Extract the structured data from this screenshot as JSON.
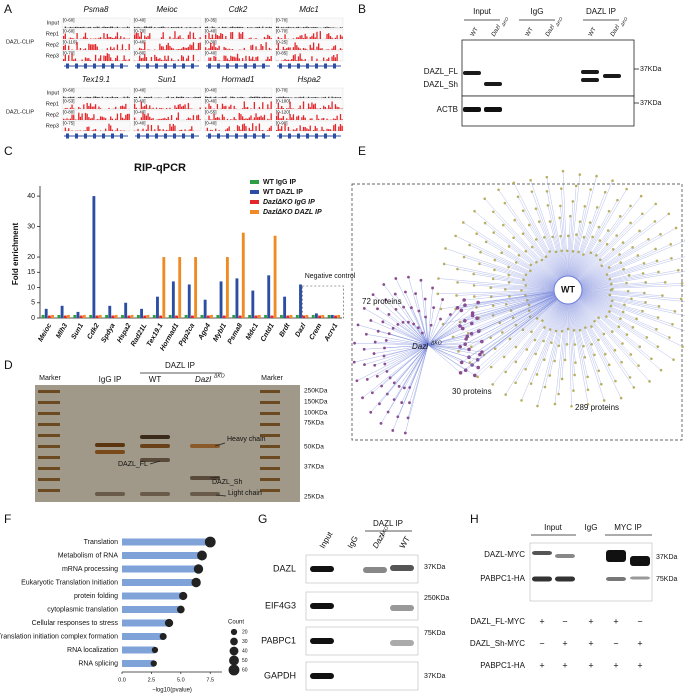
{
  "panel_labels": [
    "A",
    "B",
    "C",
    "D",
    "E",
    "F",
    "G",
    "H"
  ],
  "panel_a": {
    "tracks": [
      "Input",
      "Rep1",
      "Rep2",
      "Rep3"
    ],
    "group": "DAZL-CLIP",
    "genes": [
      {
        "name": "Psma8",
        "ranges": [
          "[0-60]",
          "[0-60]",
          "[0-110]",
          "[0-70]"
        ]
      },
      {
        "name": "Meioc",
        "ranges": [
          "[0-40]",
          "[0-70]",
          "[0-40]",
          "[0-80]"
        ]
      },
      {
        "name": "Cdk2",
        "ranges": [
          "[0-35]",
          "[0-40]",
          "[0-30]",
          "[0-40]"
        ]
      },
      {
        "name": "Mdc1",
        "ranges": [
          "[0-70]",
          "[0-70]",
          "[0-25]",
          "[0-85]"
        ]
      },
      {
        "name": "Tex19.1",
        "ranges": [
          "[0-60]",
          "[0-53]",
          "[0-80]",
          "[0-75]"
        ]
      },
      {
        "name": "Sun1",
        "ranges": [
          "[0-40]",
          "[0-40]",
          "[0-40]",
          "[0-40]"
        ]
      },
      {
        "name": "Hormad1",
        "ranges": [
          "[0-40]",
          "[0-40]",
          "[0-55]",
          "[0-40]"
        ]
      },
      {
        "name": "Hspa2",
        "ranges": [
          "[0-70]",
          "[0-100]",
          "[0-120]",
          "[0-90]"
        ]
      }
    ]
  },
  "panel_b": {
    "groups": [
      "Input",
      "IgG",
      "DAZL IP"
    ],
    "lanes": [
      "WT",
      "Dazl",
      "WT",
      "Dazl",
      "WT",
      "Dazl"
    ],
    "ko": "ΔKO",
    "bands": [
      "DAZL_FL",
      "DAZL_Sh",
      "ACTB"
    ],
    "sizes": [
      "37KDa",
      "37KDa"
    ]
  },
  "panel_d": {
    "markers": [
      "Marker",
      "Marker"
    ],
    "igg": "IgG IP",
    "ip": "DAZL IP",
    "wt": "WT",
    "ko_name": "Dazl",
    "ko": "ΔKO",
    "sizes": [
      "250KDa",
      "150KDa",
      "100KDa",
      "75KDa",
      "50KDa",
      "37KDa",
      "25KDa"
    ],
    "notes": [
      "Heavy chain",
      "DAZL_FL",
      "DAZL_Sh",
      "Light chain"
    ]
  },
  "panel_e": {
    "hub_wt": "WT",
    "hub_ko": "Dazl",
    "ko": "ΔKO",
    "counts": [
      "72 proteins",
      "30 proteins",
      "289 proteins"
    ]
  },
  "panel_g": {
    "lanes": [
      "Input",
      "IgG",
      "Dazl",
      "WT"
    ],
    "ko": "ΔKO",
    "ip": "DAZL IP",
    "rows": [
      "DAZL",
      "EIF4G3",
      "PABPC1",
      "GAPDH"
    ],
    "sizes": [
      "37KDa",
      "250KDa",
      "75KDa",
      "37KDa"
    ]
  },
  "panel_h": {
    "groups": [
      "Input",
      "IgG",
      "MYC IP"
    ],
    "rows": [
      "DAZL-MYC",
      "PABPC1-HA"
    ],
    "sizes": [
      "37KDa",
      "75KDa"
    ],
    "conditions": [
      {
        "name": "DAZL_FL-MYC",
        "signs": [
          "+",
          "−",
          "+",
          "+",
          "−"
        ]
      },
      {
        "name": "DAZL_Sh-MYC",
        "signs": [
          "−",
          "+",
          "+",
          "−",
          "+"
        ]
      },
      {
        "name": "PABPC1-HA",
        "signs": [
          "+",
          "+",
          "+",
          "+",
          "+"
        ]
      }
    ]
  },
  "chart_data": [
    {
      "type": "bar",
      "title": "RIP-qPCR",
      "ylabel": "Fold enrichment",
      "categories": [
        "Meioc",
        "Mlh3",
        "Sun1",
        "Cdk2",
        "Spdya",
        "Hspa2",
        "Rad21L",
        "Tex19.1",
        "Hormad1",
        "Ppp2ca",
        "Ago4",
        "Mybl1",
        "Psma8",
        "Mdc1",
        "Cntd1",
        "Brdt",
        "Dazl",
        "Crem",
        "Acrv1"
      ],
      "series": [
        {
          "name": "WT IgG IP",
          "color": "#2e9e44",
          "values": [
            1,
            1,
            1,
            1,
            1,
            1,
            1,
            1,
            1,
            1,
            1,
            1,
            1,
            1,
            1,
            1,
            1,
            1,
            1
          ]
        },
        {
          "name": "WT DAZL IP",
          "color": "#2b4ea2",
          "values": [
            3,
            4,
            2,
            40,
            4,
            5,
            3,
            7,
            12,
            11,
            6,
            12,
            13,
            9,
            14,
            7,
            11,
            1.5,
            1
          ]
        },
        {
          "name": "DazlΔKO IgG IP",
          "color": "#e3262a",
          "values": [
            0.8,
            0.8,
            0.8,
            0.8,
            0.8,
            0.8,
            0.8,
            0.8,
            0.8,
            0.8,
            0.8,
            0.8,
            0.8,
            0.8,
            0.8,
            0.8,
            0.8,
            0.8,
            0.8
          ]
        },
        {
          "name": "DazlΔKO DAZL IP",
          "color": "#f08a24",
          "values": [
            1,
            1,
            1,
            1,
            1,
            1,
            1,
            20,
            20,
            20,
            1,
            20,
            28,
            1,
            27,
            1,
            1,
            1,
            1
          ]
        }
      ],
      "annotation": "Negative control",
      "ylim": [
        0,
        42
      ],
      "yticks": [
        0,
        5,
        10,
        15,
        20,
        30,
        40
      ]
    },
    {
      "type": "bar",
      "orientation": "horizontal",
      "color": "#7fa3d8",
      "categories": [
        "Translation",
        "Metabolism of RNA",
        "mRNA processing",
        "Eukaryotic Translation Initiation",
        "protein folding",
        "cytoplasmic translation",
        "Cellular responses to stress",
        "Translation initiation complex formation",
        "RNA localization",
        "RNA splicing"
      ],
      "values": [
        7.5,
        6.8,
        6.5,
        6.3,
        5.2,
        5.0,
        4.0,
        3.5,
        2.8,
        2.7
      ],
      "sizes": [
        60,
        50,
        45,
        45,
        35,
        30,
        35,
        25,
        20,
        20
      ],
      "size_legend": {
        "title": "Count",
        "values": [
          20,
          30,
          40,
          50,
          60
        ]
      },
      "xlabel": "−log10(pvalue)",
      "xlim": [
        0,
        8.5
      ],
      "xticks": [
        {
          "value": 0,
          "label": "0.0"
        },
        {
          "value": 2.5,
          "label": "2.5"
        },
        {
          "value": 5,
          "label": "5.0"
        },
        {
          "value": 7.5,
          "label": "7.5"
        }
      ]
    }
  ]
}
